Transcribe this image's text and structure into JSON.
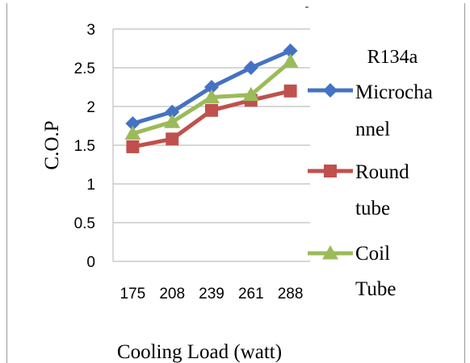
{
  "chart_data": {
    "type": "line",
    "title": "",
    "legend_title": "R134a",
    "xlabel": "Cooling Load (watt)",
    "ylabel": "C.O.P",
    "categories": [
      "175",
      "208",
      "239",
      "261",
      "288"
    ],
    "ylim": [
      0,
      3
    ],
    "yticks": [
      "0",
      "0.5",
      "1",
      "1.5",
      "2",
      "2.5",
      "3"
    ],
    "grid": true,
    "legend_position": "right",
    "series": [
      {
        "name": "Microchannel",
        "legend_lines": [
          "Microcha",
          "nnel"
        ],
        "color": "#4472c4",
        "marker": "diamond",
        "values": [
          1.78,
          1.93,
          2.25,
          2.5,
          2.72
        ]
      },
      {
        "name": "Round tube",
        "legend_lines": [
          "Round",
          "tube"
        ],
        "color": "#c0504d",
        "marker": "square",
        "values": [
          1.48,
          1.58,
          1.95,
          2.08,
          2.2
        ]
      },
      {
        "name": "Coil Tube",
        "legend_lines": [
          "Coil",
          "Tube"
        ],
        "color": "#9bbb59",
        "marker": "triangle",
        "values": [
          1.65,
          1.8,
          2.12,
          2.15,
          2.58
        ]
      }
    ]
  }
}
